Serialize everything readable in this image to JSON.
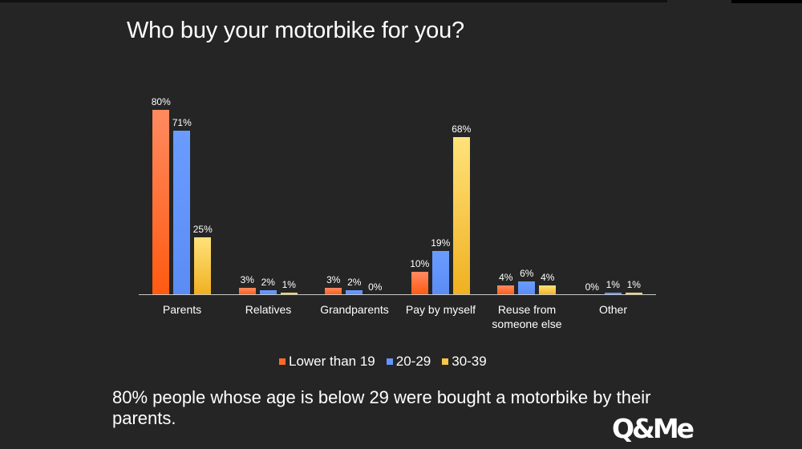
{
  "header": {
    "title": "Who buy your motorbike for you?"
  },
  "chart_data": {
    "type": "bar",
    "title": "Who buy your motorbike for you?",
    "xlabel": "",
    "ylabel": "",
    "ylim": [
      0,
      85
    ],
    "grid": false,
    "legend_position": "bottom",
    "categories": [
      "Parents",
      "Relatives",
      "Grandparents",
      "Pay by myself",
      "Reuse from someone else",
      "Other"
    ],
    "series": [
      {
        "name": "Lower than 19",
        "color": "#ff6a2a",
        "values": [
          80,
          3,
          3,
          10,
          4,
          0
        ],
        "labels": [
          "80%",
          "3%",
          "3%",
          "10%",
          "4%",
          "0%"
        ]
      },
      {
        "name": "20-29",
        "color": "#6496ff",
        "values": [
          71,
          2,
          2,
          19,
          6,
          1
        ],
        "labels": [
          "71%",
          "2%",
          "2%",
          "19%",
          "6%",
          "1%"
        ]
      },
      {
        "name": "30-39",
        "color": "#f7c548",
        "values": [
          25,
          1,
          0,
          68,
          4,
          1
        ],
        "labels": [
          "25%",
          "1%",
          "0%",
          "68%",
          "4%",
          "1%"
        ]
      }
    ]
  },
  "categories_display": [
    {
      "line1": "Parents",
      "line2": ""
    },
    {
      "line1": "Relatives",
      "line2": ""
    },
    {
      "line1": "Grandparents",
      "line2": ""
    },
    {
      "line1": "Pay by myself",
      "line2": ""
    },
    {
      "line1": "Reuse from",
      "line2": "someone else"
    },
    {
      "line1": "Other",
      "line2": ""
    }
  ],
  "legend": [
    {
      "label": "Lower than 19",
      "color": "#ff6a2a"
    },
    {
      "label": "20-29",
      "color": "#6496ff"
    },
    {
      "label": "30-39",
      "color": "#f7c548"
    }
  ],
  "caption": "80% people whose age is below 29 were bought a motorbike by their parents.",
  "logo": {
    "text": "Q&Me"
  }
}
